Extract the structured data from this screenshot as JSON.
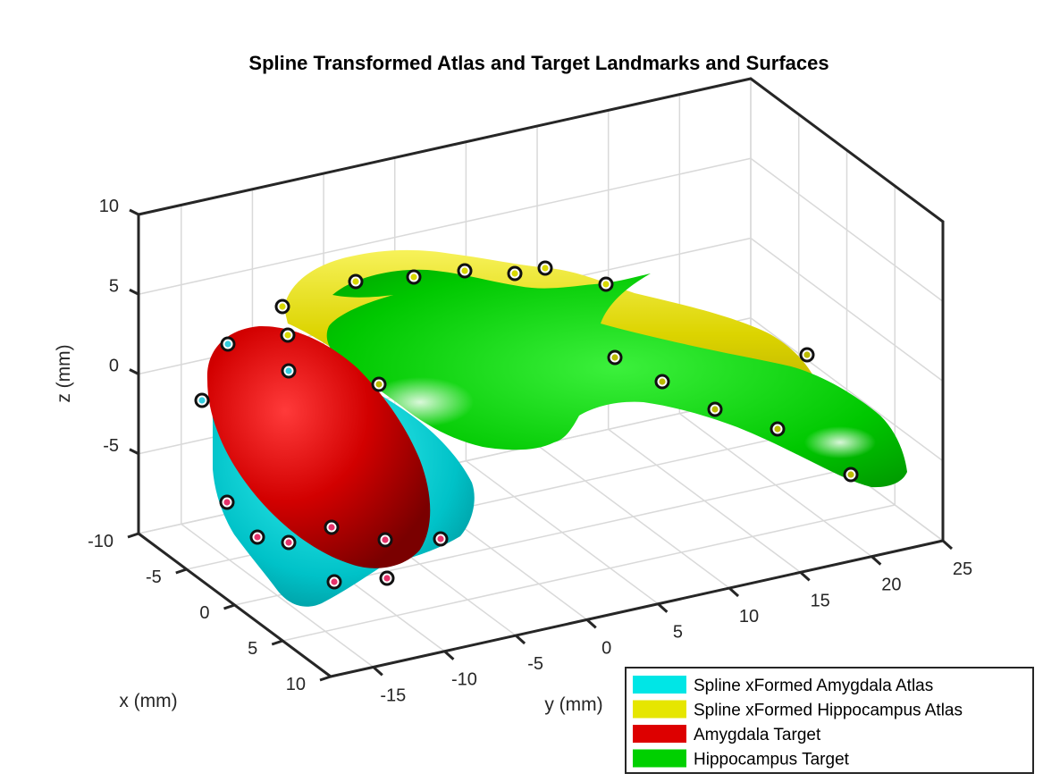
{
  "chart_data": {
    "type": "3d-surface",
    "title": "Spline Transformed Atlas and Target Landmarks and Surfaces",
    "xlabel": "x (mm)",
    "ylabel": "y (mm)",
    "zlabel": "z (mm)",
    "xlim": [
      -10,
      10
    ],
    "ylim": [
      -18,
      25
    ],
    "zlim": [
      -10,
      10
    ],
    "x_ticks": [
      "-10",
      "-5",
      "0",
      "5",
      "10"
    ],
    "y_ticks": [
      "-15",
      "-10",
      "-5",
      "0",
      "5",
      "10",
      "15",
      "20",
      "25"
    ],
    "z_ticks": [
      "10",
      "5",
      "0",
      "-5"
    ],
    "grid": true,
    "legend_position": "bottom-right",
    "series": [
      {
        "name": "Spline xFormed Amygdala Atlas",
        "color": "#00e6e6",
        "landmark_color": "#e6336b"
      },
      {
        "name": "Spline xFormed Hippocampus Atlas",
        "color": "#e6e600",
        "landmark_color": "#d9d900"
      },
      {
        "name": "Amygdala Target",
        "color": "#dd0000",
        "landmark_color": "#33ccdd"
      },
      {
        "name": "Hippocampus Target",
        "color": "#00d000",
        "landmark_color": "#bbbb00"
      }
    ]
  }
}
